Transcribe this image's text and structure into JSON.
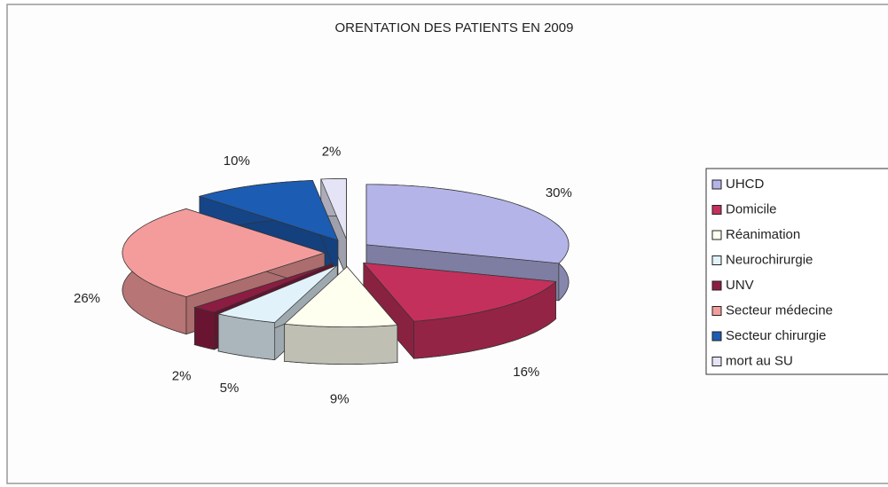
{
  "chart_data": {
    "type": "pie",
    "title": "ORENTATION DES PATIENTS EN 2009",
    "categories": [
      "UHCD",
      "Domicile",
      "Réanimation",
      "Neurochirurgie",
      "UNV",
      "Secteur médecine",
      "Secteur chirurgie",
      "mort au SU"
    ],
    "values": [
      30,
      16,
      9,
      5,
      2,
      26,
      10,
      2
    ],
    "value_labels": [
      "30%",
      "16%",
      "9%",
      "5%",
      "2%",
      "26%",
      "10%",
      "2%"
    ],
    "colors": [
      "#b4b4e8",
      "#c4305c",
      "#fffff0",
      "#e2f2fa",
      "#8c1c42",
      "#f49c9c",
      "#1c5cb2",
      "#e4e4f6"
    ],
    "legend": "right"
  }
}
